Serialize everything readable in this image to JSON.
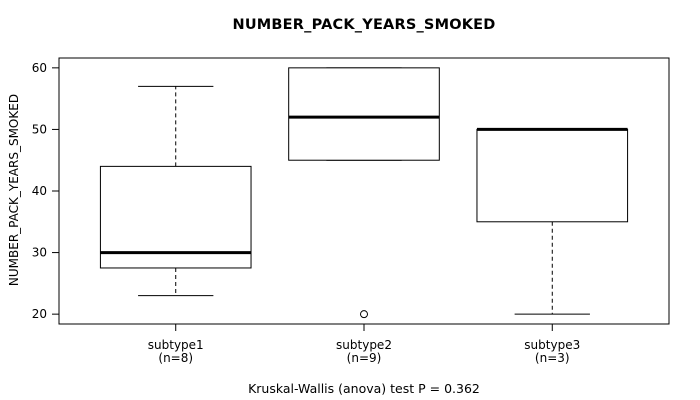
{
  "chart_data": {
    "type": "box",
    "title": "NUMBER_PACK_YEARS_SMOKED",
    "ylabel": "NUMBER_PACK_YEARS_SMOKED",
    "footer": "Kruskal-Wallis (anova) test P = 0.362",
    "yticks": [
      20,
      30,
      40,
      50,
      60
    ],
    "ylim": [
      18.4,
      61.6
    ],
    "grid": false,
    "legend": "none",
    "groups": [
      {
        "label": "subtype1",
        "n_label": "(n=8)",
        "whisker_low": 23,
        "q1": 27.5,
        "median": 30,
        "q3": 44,
        "whisker_high": 57,
        "outliers": []
      },
      {
        "label": "subtype2",
        "n_label": "(n=9)",
        "whisker_low": 45,
        "q1": 45,
        "median": 52,
        "q3": 60,
        "whisker_high": 60,
        "outliers": [
          20
        ]
      },
      {
        "label": "subtype3",
        "n_label": "(n=3)",
        "whisker_low": 20,
        "q1": 35,
        "median": 50,
        "q3": 50,
        "whisker_high": 50,
        "outliers": []
      }
    ],
    "colors": {
      "line": "#000000",
      "background": "#ffffff"
    }
  }
}
